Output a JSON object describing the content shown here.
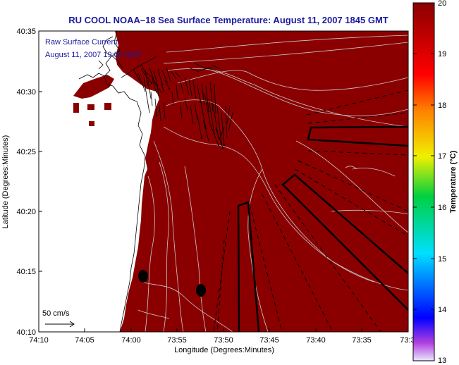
{
  "title": "RU COOL  NOAA–18  Sea Surface Temperature:  August 11, 2007 1845 GMT",
  "overlay": {
    "line1": "Raw Surface Current:",
    "line2": "August 11, 2007 19:00 GMT"
  },
  "scale_label": "50 cm/s",
  "map": {
    "xlabel": "Longitude (Degrees:Minutes)",
    "ylabel": "Latitude (Degrees:Minutes)",
    "x_ticks": [
      "74:10",
      "74:05",
      "74:00",
      "73:55",
      "73:50",
      "73:45",
      "73:40",
      "73:35",
      "73:3"
    ],
    "y_ticks": [
      "40:35",
      "40:30",
      "40:25",
      "40:20",
      "40:15",
      "40:10"
    ]
  },
  "colorbar": {
    "label": "Temperature (°C)",
    "ticks": [
      "20",
      "19",
      "18",
      "17",
      "16",
      "15",
      "14",
      "13"
    ],
    "min": 13,
    "max": 20
  },
  "colors": {
    "sst_fill": "#8a0000",
    "title_text": "#1a1aa0",
    "contour": "#c8c8c8"
  }
}
